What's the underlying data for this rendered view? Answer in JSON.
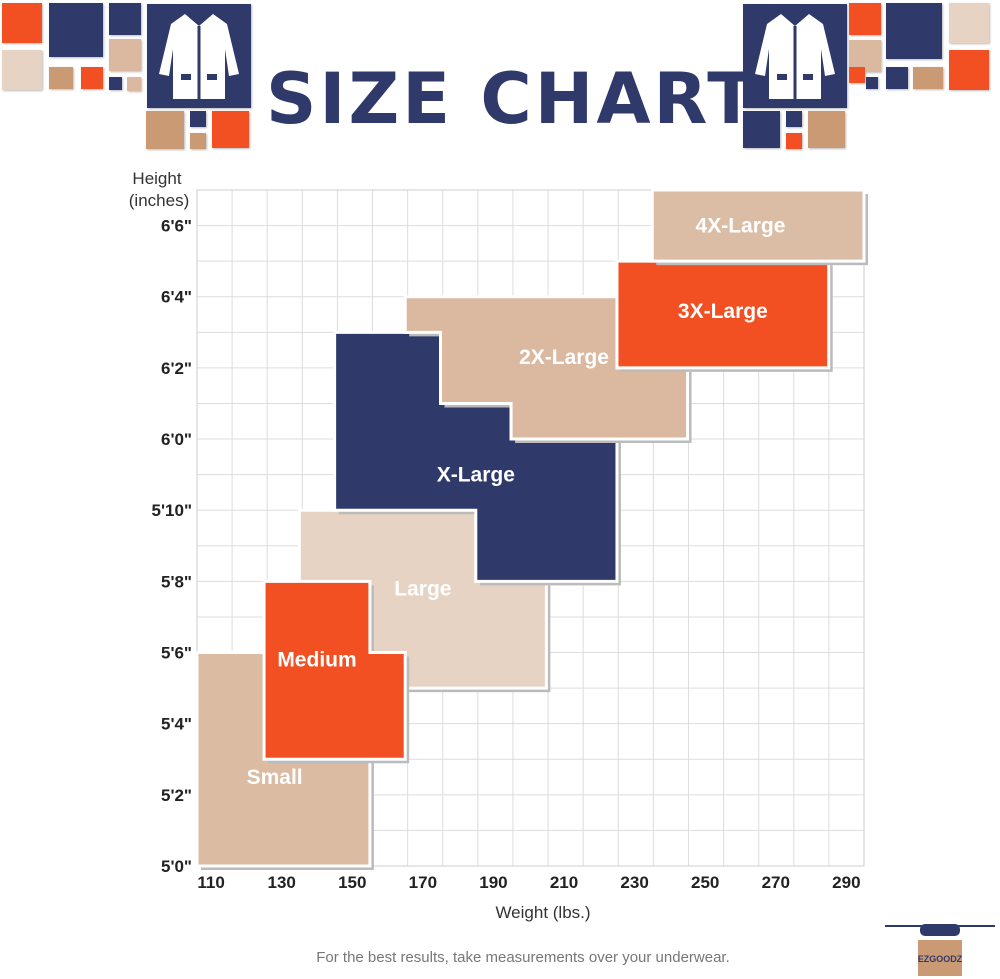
{
  "title": "SIZE CHART",
  "footer": "For the best results, take measurements over your underwear.",
  "logo_text": "EZGOODZ",
  "colors": {
    "navy": "#2f3a6b",
    "orange": "#f25022",
    "tan": "#dbb9a0",
    "light_tan": "#e6d3c3",
    "brown": "#c99a74"
  },
  "chart_data": {
    "type": "region",
    "xlabel": "Weight (lbs.)",
    "ylabel": "Height (inches)",
    "xlim": [
      106,
      295
    ],
    "ylim": [
      60,
      79
    ],
    "grid": true,
    "xticks": [
      110,
      130,
      150,
      170,
      190,
      210,
      230,
      250,
      270,
      290
    ],
    "xtick_labels": [
      "110",
      "130",
      "150",
      "170",
      "190",
      "210",
      "230",
      "250",
      "270",
      "290"
    ],
    "yticks": [
      60,
      62,
      64,
      66,
      68,
      70,
      72,
      74,
      76,
      78
    ],
    "ytick_labels": [
      "5'0\"",
      "5'2\"",
      "5'4\"",
      "5'6\"",
      "5'8\"",
      "5'10\"",
      "6'0\"",
      "6'2\"",
      "6'4\"",
      "6'6\""
    ],
    "regions": [
      {
        "name": "Small",
        "color": "#dcbba3",
        "points": [
          [
            106,
            60
          ],
          [
            155,
            60
          ],
          [
            155,
            66
          ],
          [
            106,
            66
          ]
        ]
      },
      {
        "name": "Large",
        "color": "#e6d3c3",
        "points": [
          [
            135,
            65
          ],
          [
            205,
            65
          ],
          [
            205,
            68
          ],
          [
            185,
            68
          ],
          [
            185,
            70
          ],
          [
            135,
            70
          ]
        ]
      },
      {
        "name": "Medium",
        "color": "#f25022",
        "points": [
          [
            125,
            63
          ],
          [
            165,
            63
          ],
          [
            165,
            66
          ],
          [
            155,
            66
          ],
          [
            155,
            68
          ],
          [
            125,
            68
          ]
        ]
      },
      {
        "name": "X-Large",
        "color": "#2f3a6b",
        "points": [
          [
            145,
            70
          ],
          [
            185,
            70
          ],
          [
            185,
            68
          ],
          [
            225,
            68
          ],
          [
            225,
            72
          ],
          [
            195,
            72
          ],
          [
            195,
            73
          ],
          [
            175,
            73
          ],
          [
            175,
            75
          ],
          [
            145,
            75
          ]
        ]
      },
      {
        "name": "2X-Large",
        "color": "#dbb9a0",
        "points": [
          [
            165,
            76
          ],
          [
            225,
            76
          ],
          [
            225,
            74
          ],
          [
            245,
            74
          ],
          [
            245,
            72
          ],
          [
            195,
            72
          ],
          [
            195,
            73
          ],
          [
            175,
            73
          ],
          [
            175,
            75
          ],
          [
            165,
            75
          ]
        ]
      },
      {
        "name": "3X-Large",
        "color": "#f25022",
        "points": [
          [
            225,
            74
          ],
          [
            285,
            74
          ],
          [
            285,
            77
          ],
          [
            225,
            77
          ]
        ]
      },
      {
        "name": "4X-Large",
        "color": "#dbbca5",
        "points": [
          [
            235,
            77
          ],
          [
            295,
            77
          ],
          [
            295,
            79
          ],
          [
            235,
            79
          ]
        ]
      }
    ]
  }
}
